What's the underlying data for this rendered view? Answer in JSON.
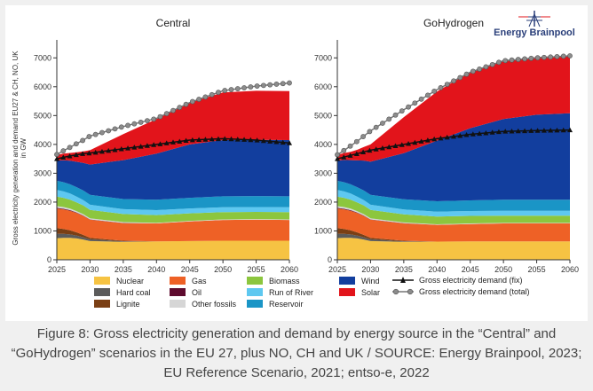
{
  "logo": {
    "text": "Energy Brainpool"
  },
  "caption": {
    "line1": "Figure 8: Gross electricity generation and demand by energy source in the “Central” and",
    "line2": "“GoHydrogen” scenarios in the EU 27, plus NO, CH and UK / SOURCE: Energy Brainpool, 2023;",
    "line3": "EU Reference Scenario, 2021; entso-e, 2022"
  },
  "colors": {
    "Nuclear": "#f6c343",
    "Hard coal": "#5b5b5b",
    "Lignite": "#7a3f14",
    "Gas": "#ee6126",
    "Oil": "#5e0b2e",
    "Other fossils": "#d6d6d6",
    "Biomass": "#8cc63e",
    "Run of River": "#5ec8f0",
    "Reservoir": "#1a95c6",
    "Wind": "#123e9e",
    "Solar": "#e2141b",
    "Demand": "#111111",
    "DemandTotal": "#777777"
  },
  "chart_data": [
    {
      "type": "area",
      "title": "Central",
      "ylabel": "Gross electricity generation and demand EU27 & CH, NO, UK in GW",
      "xlabel": "",
      "ylim": [
        0,
        7500
      ],
      "yticks": [
        0,
        1000,
        2000,
        3000,
        4000,
        5000,
        6000,
        7000
      ],
      "xticks": [
        2025,
        2030,
        2035,
        2040,
        2045,
        2050,
        2055,
        2060
      ],
      "x": [
        2025,
        2026,
        2027,
        2028,
        2029,
        2030,
        2035,
        2040,
        2045,
        2050,
        2055,
        2060
      ],
      "series": [
        {
          "name": "Nuclear",
          "values": [
            750,
            760,
            760,
            740,
            700,
            650,
            620,
            640,
            650,
            660,
            660,
            660
          ]
        },
        {
          "name": "Hard coal",
          "values": [
            150,
            140,
            120,
            100,
            80,
            60,
            20,
            0,
            0,
            0,
            0,
            0
          ]
        },
        {
          "name": "Lignite",
          "values": [
            200,
            170,
            140,
            110,
            80,
            50,
            20,
            0,
            0,
            0,
            0,
            0
          ]
        },
        {
          "name": "Gas",
          "values": [
            680,
            680,
            680,
            670,
            660,
            630,
            610,
            620,
            680,
            720,
            730,
            720
          ]
        },
        {
          "name": "Oil",
          "values": [
            20,
            20,
            20,
            15,
            15,
            10,
            5,
            0,
            0,
            0,
            0,
            0
          ]
        },
        {
          "name": "Other fossils",
          "values": [
            60,
            60,
            55,
            50,
            45,
            40,
            30,
            20,
            20,
            20,
            20,
            20
          ]
        },
        {
          "name": "Biomass",
          "values": [
            330,
            320,
            310,
            300,
            300,
            290,
            280,
            270,
            260,
            250,
            250,
            250
          ]
        },
        {
          "name": "Run of River",
          "values": [
            230,
            220,
            210,
            200,
            190,
            180,
            170,
            170,
            170,
            170,
            170,
            170
          ]
        },
        {
          "name": "Reservoir",
          "values": [
            320,
            320,
            320,
            330,
            330,
            340,
            350,
            360,
            370,
            380,
            380,
            380
          ]
        },
        {
          "name": "Wind",
          "values": [
            700,
            760,
            820,
            880,
            960,
            1050,
            1350,
            1600,
            1850,
            1950,
            1950,
            1950
          ]
        },
        {
          "name": "Solar",
          "values": [
            200,
            230,
            270,
            330,
            400,
            500,
            900,
            1200,
            1450,
            1650,
            1700,
            1700
          ]
        }
      ],
      "demand_fix": [
        3500,
        3550,
        3600,
        3640,
        3680,
        3700,
        3850,
        4000,
        4150,
        4200,
        4150,
        4050
      ],
      "demand_total": [
        3650,
        3780,
        3900,
        4030,
        4150,
        4290,
        4620,
        4900,
        5450,
        5860,
        6020,
        6130
      ]
    },
    {
      "type": "area",
      "title": "GoHydrogen",
      "ylabel": "",
      "xlabel": "",
      "ylim": [
        0,
        7500
      ],
      "yticks": [
        0,
        1000,
        2000,
        3000,
        4000,
        5000,
        6000,
        7000
      ],
      "xticks": [
        2025,
        2030,
        2035,
        2040,
        2045,
        2050,
        2055,
        2060
      ],
      "x": [
        2025,
        2026,
        2027,
        2028,
        2029,
        2030,
        2035,
        2040,
        2045,
        2050,
        2055,
        2060
      ],
      "series": [
        {
          "name": "Nuclear",
          "values": [
            750,
            760,
            760,
            740,
            700,
            650,
            620,
            630,
            640,
            640,
            640,
            640
          ]
        },
        {
          "name": "Hard coal",
          "values": [
            150,
            140,
            120,
            100,
            80,
            60,
            20,
            0,
            0,
            0,
            0,
            0
          ]
        },
        {
          "name": "Lignite",
          "values": [
            200,
            170,
            140,
            110,
            80,
            50,
            20,
            0,
            0,
            0,
            0,
            0
          ]
        },
        {
          "name": "Gas",
          "values": [
            680,
            680,
            680,
            670,
            660,
            630,
            600,
            580,
            600,
            620,
            620,
            620
          ]
        },
        {
          "name": "Oil",
          "values": [
            20,
            20,
            20,
            15,
            15,
            10,
            5,
            0,
            0,
            0,
            0,
            0
          ]
        },
        {
          "name": "Other fossils",
          "values": [
            60,
            60,
            55,
            50,
            45,
            40,
            30,
            20,
            20,
            20,
            20,
            20
          ]
        },
        {
          "name": "Biomass",
          "values": [
            330,
            320,
            310,
            300,
            300,
            290,
            280,
            270,
            260,
            250,
            250,
            250
          ]
        },
        {
          "name": "Run of River",
          "values": [
            230,
            220,
            210,
            200,
            190,
            180,
            170,
            170,
            170,
            170,
            170,
            170
          ]
        },
        {
          "name": "Reservoir",
          "values": [
            320,
            320,
            320,
            330,
            330,
            340,
            350,
            360,
            370,
            380,
            380,
            380
          ]
        },
        {
          "name": "Wind",
          "values": [
            700,
            770,
            840,
            930,
            1040,
            1150,
            1600,
            2100,
            2500,
            2800,
            2950,
            3000
          ]
        },
        {
          "name": "Solar",
          "values": [
            200,
            240,
            290,
            370,
            470,
            600,
            1250,
            1700,
            1950,
            2000,
            2000,
            2000
          ]
        }
      ],
      "demand_fix": [
        3500,
        3560,
        3620,
        3680,
        3740,
        3800,
        4000,
        4200,
        4350,
        4450,
        4480,
        4500
      ],
      "demand_total": [
        3640,
        3790,
        3950,
        4110,
        4290,
        4470,
        5200,
        5900,
        6500,
        6900,
        7000,
        7070
      ]
    }
  ],
  "legend": {
    "col1": [
      "Nuclear",
      "Hard coal",
      "Lignite"
    ],
    "col2": [
      "Gas",
      "Oil",
      "Other fossils"
    ],
    "col3": [
      "Biomass",
      "Run of River",
      "Reservoir"
    ],
    "col4": [
      "Wind",
      "Solar"
    ],
    "col5": [
      "Gross electricity demand (fix)",
      "Gross electricity demand (total)"
    ]
  }
}
